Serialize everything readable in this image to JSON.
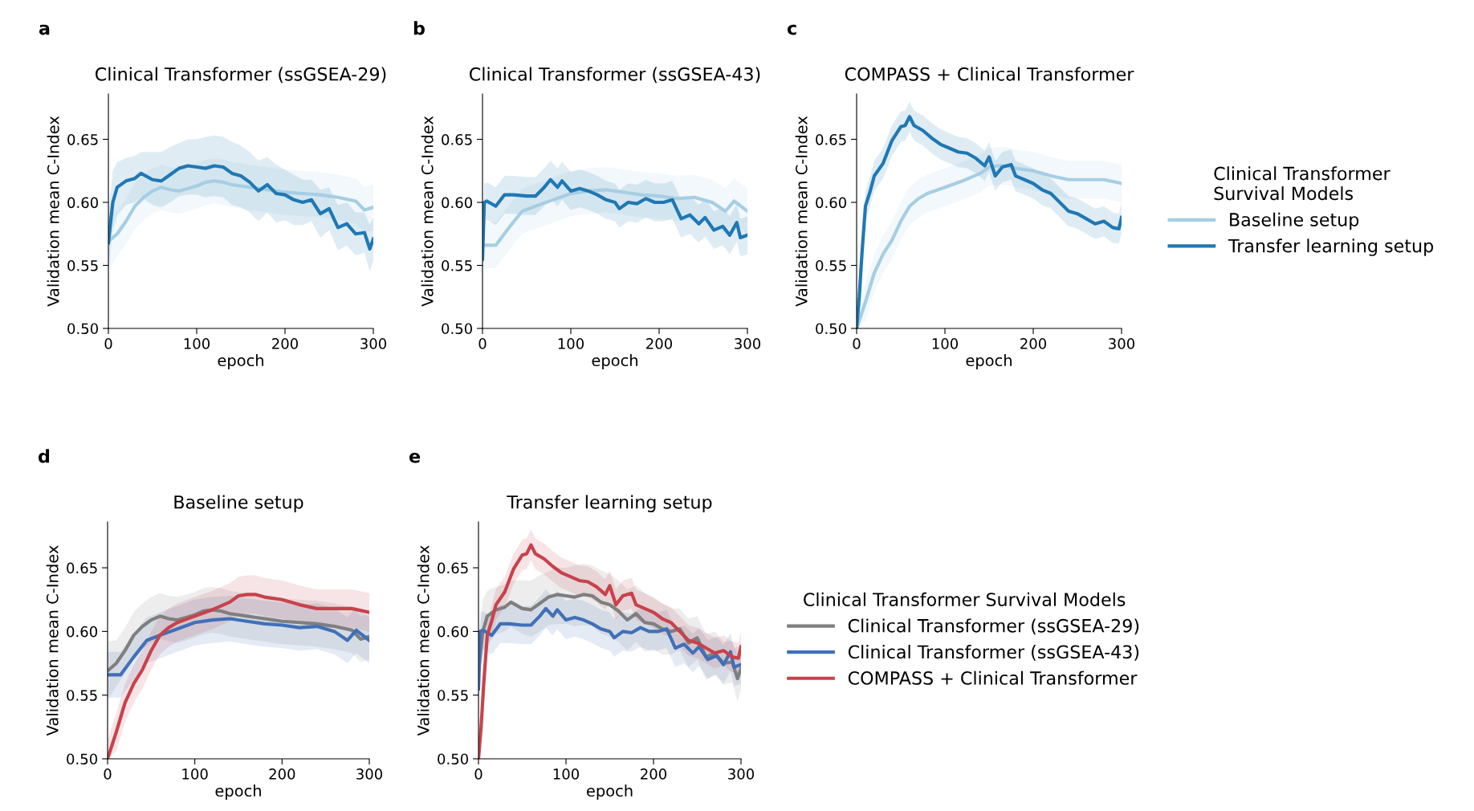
{
  "chart_data": [
    {
      "type": "line",
      "title": "Clinical Transformer (ssGSEA-29)",
      "annotations": [
        "a"
      ],
      "xlabel": "epoch",
      "ylabel": "Validation mean C-Index",
      "xlim": [
        0,
        300
      ],
      "xticks": [
        0,
        100,
        200,
        300
      ],
      "ylim": [
        0.5,
        0.686
      ],
      "yticks": [
        {
          "value": 0.5,
          "label": "0.50"
        },
        {
          "value": 0.55,
          "label": "0.55"
        },
        {
          "value": 0.6,
          "label": "0.60"
        },
        {
          "value": 0.65,
          "label": "0.65"
        }
      ],
      "grid": false,
      "legend": false,
      "series": [
        {
          "color": "#a6cee3",
          "x": [
            0,
            10,
            20,
            30,
            40,
            50,
            60,
            70,
            80,
            90,
            100,
            110,
            120,
            130,
            140,
            150,
            160,
            170,
            180,
            190,
            200,
            220,
            240,
            260,
            280,
            290,
            300
          ],
          "values": [
            0.569,
            0.575,
            0.585,
            0.597,
            0.604,
            0.609,
            0.612,
            0.61,
            0.609,
            0.611,
            0.613,
            0.616,
            0.617,
            0.616,
            0.614,
            0.613,
            0.612,
            0.611,
            0.61,
            0.609,
            0.608,
            0.607,
            0.606,
            0.604,
            0.601,
            0.594,
            0.596
          ],
          "upper": [
            0.592,
            0.593,
            0.603,
            0.615,
            0.622,
            0.627,
            0.63,
            0.628,
            0.627,
            0.629,
            0.631,
            0.634,
            0.635,
            0.634,
            0.632,
            0.631,
            0.63,
            0.629,
            0.628,
            0.627,
            0.626,
            0.625,
            0.624,
            0.622,
            0.619,
            0.612,
            0.614
          ],
          "lower": [
            0.546,
            0.557,
            0.567,
            0.579,
            0.586,
            0.591,
            0.594,
            0.592,
            0.591,
            0.593,
            0.595,
            0.598,
            0.599,
            0.598,
            0.596,
            0.595,
            0.594,
            0.593,
            0.592,
            0.591,
            0.59,
            0.589,
            0.588,
            0.586,
            0.583,
            0.576,
            0.578
          ]
        },
        {
          "color": "#1f78b4",
          "x": [
            0,
            5,
            10,
            20,
            30,
            37,
            50,
            60,
            70,
            80,
            90,
            100,
            110,
            120,
            130,
            140,
            150,
            160,
            170,
            180,
            190,
            200,
            210,
            220,
            230,
            240,
            250,
            260,
            270,
            280,
            290,
            296,
            300
          ],
          "values": [
            0.568,
            0.6,
            0.612,
            0.617,
            0.619,
            0.623,
            0.618,
            0.617,
            0.622,
            0.627,
            0.629,
            0.628,
            0.627,
            0.629,
            0.628,
            0.623,
            0.621,
            0.616,
            0.609,
            0.614,
            0.607,
            0.606,
            0.602,
            0.6,
            0.602,
            0.591,
            0.595,
            0.58,
            0.583,
            0.575,
            0.576,
            0.563,
            0.571
          ],
          "upper": [
            0.59,
            0.625,
            0.632,
            0.635,
            0.637,
            0.64,
            0.64,
            0.64,
            0.644,
            0.647,
            0.65,
            0.65,
            0.652,
            0.653,
            0.652,
            0.648,
            0.645,
            0.64,
            0.633,
            0.636,
            0.63,
            0.626,
            0.622,
            0.618,
            0.618,
            0.61,
            0.612,
            0.598,
            0.6,
            0.592,
            0.592,
            0.582,
            0.588
          ],
          "lower": [
            0.546,
            0.578,
            0.59,
            0.598,
            0.6,
            0.604,
            0.598,
            0.596,
            0.6,
            0.605,
            0.606,
            0.606,
            0.604,
            0.605,
            0.604,
            0.598,
            0.596,
            0.592,
            0.585,
            0.592,
            0.584,
            0.586,
            0.582,
            0.582,
            0.585,
            0.572,
            0.578,
            0.562,
            0.566,
            0.558,
            0.56,
            0.545,
            0.554
          ]
        }
      ]
    },
    {
      "type": "line",
      "title": "Clinical Transformer (ssGSEA-43)",
      "annotations": [
        "b"
      ],
      "xlabel": "epoch",
      "ylabel": "Validation mean C-Index",
      "xlim": [
        0,
        300
      ],
      "xticks": [
        0,
        100,
        200,
        300
      ],
      "ylim": [
        0.5,
        0.686
      ],
      "yticks": [
        {
          "value": 0.5,
          "label": "0.50"
        },
        {
          "value": 0.55,
          "label": "0.55"
        },
        {
          "value": 0.6,
          "label": "0.60"
        },
        {
          "value": 0.65,
          "label": "0.65"
        }
      ],
      "grid": false,
      "legend": false,
      "series": [
        {
          "color": "#a6cee3",
          "x": [
            0,
            15,
            30,
            45,
            60,
            80,
            100,
            120,
            140,
            160,
            180,
            200,
            220,
            240,
            260,
            275,
            285,
            300
          ],
          "values": [
            0.566,
            0.566,
            0.58,
            0.593,
            0.597,
            0.602,
            0.607,
            0.609,
            0.61,
            0.608,
            0.606,
            0.605,
            0.603,
            0.604,
            0.6,
            0.593,
            0.601,
            0.593
          ],
          "upper": [
            0.584,
            0.584,
            0.598,
            0.611,
            0.615,
            0.62,
            0.625,
            0.627,
            0.628,
            0.626,
            0.624,
            0.623,
            0.621,
            0.622,
            0.618,
            0.611,
            0.619,
            0.611
          ],
          "lower": [
            0.548,
            0.548,
            0.562,
            0.575,
            0.579,
            0.584,
            0.589,
            0.591,
            0.592,
            0.59,
            0.588,
            0.587,
            0.585,
            0.586,
            0.582,
            0.575,
            0.583,
            0.575
          ]
        },
        {
          "color": "#1f78b4",
          "x": [
            0,
            2,
            5,
            15,
            25,
            35,
            50,
            60,
            70,
            77,
            85,
            90,
            100,
            110,
            120,
            130,
            140,
            150,
            155,
            165,
            175,
            185,
            195,
            205,
            215,
            225,
            235,
            245,
            252,
            262,
            272,
            280,
            288,
            292,
            300
          ],
          "values": [
            0.555,
            0.6,
            0.601,
            0.597,
            0.606,
            0.606,
            0.605,
            0.605,
            0.612,
            0.618,
            0.612,
            0.617,
            0.609,
            0.611,
            0.609,
            0.606,
            0.602,
            0.6,
            0.595,
            0.6,
            0.599,
            0.603,
            0.6,
            0.6,
            0.602,
            0.587,
            0.59,
            0.583,
            0.588,
            0.578,
            0.581,
            0.574,
            0.584,
            0.572,
            0.574
          ],
          "upper": [
            0.57,
            0.615,
            0.616,
            0.612,
            0.621,
            0.621,
            0.62,
            0.62,
            0.627,
            0.633,
            0.627,
            0.632,
            0.624,
            0.626,
            0.624,
            0.621,
            0.617,
            0.615,
            0.61,
            0.615,
            0.614,
            0.618,
            0.615,
            0.615,
            0.617,
            0.602,
            0.605,
            0.598,
            0.603,
            0.593,
            0.596,
            0.589,
            0.599,
            0.587,
            0.589
          ],
          "lower": [
            0.54,
            0.585,
            0.586,
            0.582,
            0.591,
            0.591,
            0.59,
            0.59,
            0.597,
            0.603,
            0.597,
            0.602,
            0.594,
            0.596,
            0.594,
            0.591,
            0.587,
            0.585,
            0.58,
            0.585,
            0.584,
            0.588,
            0.585,
            0.585,
            0.587,
            0.572,
            0.575,
            0.568,
            0.573,
            0.563,
            0.566,
            0.559,
            0.569,
            0.557,
            0.559
          ]
        }
      ]
    },
    {
      "type": "line",
      "title": "COMPASS + Clinical Transformer",
      "annotations": [
        "c"
      ],
      "xlabel": "epoch",
      "ylabel": "Validation mean C-Index",
      "xlim": [
        0,
        300
      ],
      "xticks": [
        0,
        100,
        200,
        300
      ],
      "ylim": [
        0.5,
        0.686
      ],
      "yticks": [
        {
          "value": 0.5,
          "label": "0.50"
        },
        {
          "value": 0.55,
          "label": "0.55"
        },
        {
          "value": 0.6,
          "label": "0.60"
        },
        {
          "value": 0.65,
          "label": "0.65"
        }
      ],
      "grid": false,
      "legend": "right",
      "legend_title": "Clinical Transformer\nSurvival Models",
      "series": [
        {
          "name": "Baseline setup",
          "color": "#a6cee3",
          "x": [
            0,
            10,
            20,
            30,
            40,
            50,
            60,
            70,
            80,
            100,
            120,
            140,
            150,
            160,
            170,
            180,
            200,
            220,
            240,
            260,
            280,
            300
          ],
          "values": [
            0.5,
            0.521,
            0.544,
            0.559,
            0.57,
            0.585,
            0.597,
            0.603,
            0.607,
            0.612,
            0.617,
            0.623,
            0.628,
            0.629,
            0.629,
            0.627,
            0.625,
            0.621,
            0.618,
            0.618,
            0.618,
            0.615
          ],
          "upper": [
            0.515,
            0.536,
            0.559,
            0.574,
            0.585,
            0.6,
            0.612,
            0.618,
            0.622,
            0.627,
            0.632,
            0.638,
            0.643,
            0.644,
            0.644,
            0.642,
            0.64,
            0.636,
            0.633,
            0.633,
            0.633,
            0.63
          ],
          "lower": [
            0.5,
            0.506,
            0.529,
            0.544,
            0.555,
            0.57,
            0.582,
            0.588,
            0.592,
            0.597,
            0.602,
            0.608,
            0.613,
            0.614,
            0.614,
            0.612,
            0.61,
            0.606,
            0.603,
            0.603,
            0.603,
            0.6
          ]
        },
        {
          "name": "Transfer learning setup",
          "color": "#1f78b4",
          "x": [
            0,
            3,
            6,
            10,
            15,
            20,
            30,
            40,
            50,
            55,
            60,
            65,
            75,
            85,
            95,
            105,
            115,
            125,
            135,
            145,
            150,
            157,
            165,
            175,
            180,
            190,
            200,
            210,
            220,
            230,
            240,
            250,
            260,
            270,
            280,
            290,
            297,
            300
          ],
          "values": [
            0.5,
            0.525,
            0.559,
            0.597,
            0.608,
            0.621,
            0.631,
            0.649,
            0.66,
            0.661,
            0.668,
            0.661,
            0.657,
            0.651,
            0.646,
            0.643,
            0.64,
            0.639,
            0.635,
            0.629,
            0.636,
            0.621,
            0.628,
            0.63,
            0.621,
            0.618,
            0.615,
            0.61,
            0.607,
            0.6,
            0.593,
            0.591,
            0.587,
            0.583,
            0.585,
            0.58,
            0.579,
            0.588
          ],
          "upper": [
            0.512,
            0.537,
            0.571,
            0.609,
            0.62,
            0.633,
            0.643,
            0.661,
            0.672,
            0.673,
            0.68,
            0.673,
            0.669,
            0.663,
            0.658,
            0.655,
            0.652,
            0.651,
            0.647,
            0.641,
            0.648,
            0.633,
            0.64,
            0.642,
            0.633,
            0.63,
            0.627,
            0.622,
            0.619,
            0.612,
            0.605,
            0.603,
            0.599,
            0.595,
            0.597,
            0.592,
            0.591,
            0.6
          ],
          "lower": [
            0.5,
            0.513,
            0.547,
            0.585,
            0.596,
            0.609,
            0.619,
            0.637,
            0.648,
            0.649,
            0.656,
            0.649,
            0.645,
            0.639,
            0.634,
            0.631,
            0.628,
            0.627,
            0.623,
            0.617,
            0.624,
            0.609,
            0.616,
            0.618,
            0.609,
            0.606,
            0.603,
            0.598,
            0.595,
            0.588,
            0.581,
            0.579,
            0.575,
            0.571,
            0.573,
            0.568,
            0.567,
            0.576
          ]
        }
      ]
    },
    {
      "type": "line",
      "title": "Baseline setup",
      "annotations": [
        "d"
      ],
      "xlabel": "epoch",
      "ylabel": "Validation mean C-Index",
      "xlim": [
        0,
        300
      ],
      "xticks": [
        0,
        100,
        200,
        300
      ],
      "ylim": [
        0.5,
        0.686
      ],
      "yticks": [
        {
          "value": 0.5,
          "label": "0.50"
        },
        {
          "value": 0.55,
          "label": "0.55"
        },
        {
          "value": 0.6,
          "label": "0.60"
        },
        {
          "value": 0.65,
          "label": "0.65"
        }
      ],
      "grid": false,
      "legend": false,
      "series": [
        {
          "color": "#7f7f7f",
          "x": [
            0,
            10,
            20,
            30,
            40,
            50,
            60,
            70,
            80,
            90,
            100,
            110,
            120,
            130,
            140,
            150,
            160,
            170,
            180,
            190,
            200,
            220,
            240,
            260,
            280,
            290,
            300
          ],
          "values": [
            0.569,
            0.575,
            0.585,
            0.597,
            0.604,
            0.609,
            0.612,
            0.61,
            0.609,
            0.611,
            0.613,
            0.616,
            0.617,
            0.616,
            0.614,
            0.613,
            0.612,
            0.611,
            0.61,
            0.609,
            0.608,
            0.607,
            0.606,
            0.604,
            0.601,
            0.594,
            0.596
          ],
          "upper": [
            0.592,
            0.593,
            0.603,
            0.615,
            0.622,
            0.627,
            0.63,
            0.628,
            0.627,
            0.629,
            0.631,
            0.634,
            0.635,
            0.634,
            0.632,
            0.631,
            0.63,
            0.629,
            0.628,
            0.627,
            0.626,
            0.625,
            0.624,
            0.622,
            0.619,
            0.612,
            0.614
          ],
          "lower": [
            0.546,
            0.557,
            0.567,
            0.579,
            0.586,
            0.591,
            0.594,
            0.592,
            0.591,
            0.593,
            0.595,
            0.598,
            0.599,
            0.598,
            0.596,
            0.595,
            0.594,
            0.593,
            0.592,
            0.591,
            0.59,
            0.589,
            0.588,
            0.586,
            0.583,
            0.576,
            0.578
          ]
        },
        {
          "color": "#4070b8",
          "x": [
            0,
            15,
            30,
            45,
            60,
            80,
            100,
            120,
            140,
            160,
            180,
            200,
            220,
            240,
            260,
            275,
            285,
            300
          ],
          "values": [
            0.566,
            0.566,
            0.58,
            0.593,
            0.597,
            0.602,
            0.607,
            0.609,
            0.61,
            0.608,
            0.606,
            0.605,
            0.603,
            0.604,
            0.6,
            0.593,
            0.601,
            0.593
          ],
          "upper": [
            0.584,
            0.584,
            0.598,
            0.611,
            0.615,
            0.62,
            0.625,
            0.627,
            0.628,
            0.626,
            0.624,
            0.623,
            0.621,
            0.622,
            0.618,
            0.611,
            0.619,
            0.611
          ],
          "lower": [
            0.548,
            0.548,
            0.562,
            0.575,
            0.579,
            0.584,
            0.589,
            0.591,
            0.592,
            0.59,
            0.588,
            0.587,
            0.585,
            0.586,
            0.582,
            0.575,
            0.583,
            0.575
          ]
        },
        {
          "color": "#c8424b",
          "x": [
            0,
            10,
            20,
            30,
            40,
            50,
            60,
            70,
            80,
            100,
            120,
            140,
            150,
            160,
            170,
            180,
            200,
            220,
            240,
            260,
            280,
            300
          ],
          "values": [
            0.5,
            0.521,
            0.544,
            0.559,
            0.57,
            0.585,
            0.597,
            0.603,
            0.607,
            0.612,
            0.617,
            0.623,
            0.628,
            0.629,
            0.629,
            0.627,
            0.625,
            0.621,
            0.618,
            0.618,
            0.618,
            0.615
          ],
          "upper": [
            0.515,
            0.536,
            0.559,
            0.574,
            0.585,
            0.6,
            0.612,
            0.618,
            0.622,
            0.627,
            0.632,
            0.638,
            0.643,
            0.644,
            0.644,
            0.642,
            0.64,
            0.636,
            0.633,
            0.633,
            0.633,
            0.63
          ],
          "lower": [
            0.5,
            0.506,
            0.529,
            0.544,
            0.555,
            0.57,
            0.582,
            0.588,
            0.592,
            0.597,
            0.602,
            0.608,
            0.613,
            0.614,
            0.614,
            0.612,
            0.61,
            0.606,
            0.603,
            0.603,
            0.603,
            0.6
          ]
        }
      ]
    },
    {
      "type": "line",
      "title": "Transfer learning setup",
      "annotations": [
        "e"
      ],
      "xlabel": "epoch",
      "ylabel": "Validation mean C-Index",
      "xlim": [
        0,
        300
      ],
      "xticks": [
        0,
        100,
        200,
        300
      ],
      "ylim": [
        0.5,
        0.686
      ],
      "yticks": [
        {
          "value": 0.5,
          "label": "0.50"
        },
        {
          "value": 0.55,
          "label": "0.55"
        },
        {
          "value": 0.6,
          "label": "0.60"
        },
        {
          "value": 0.65,
          "label": "0.65"
        }
      ],
      "grid": false,
      "legend": "right",
      "legend_title": "Clinical Transformer Survival Models",
      "series": [
        {
          "name": "Clinical Transformer (ssGSEA-29)",
          "color": "#7f7f7f",
          "x": [
            0,
            5,
            10,
            20,
            30,
            37,
            50,
            60,
            70,
            80,
            90,
            100,
            110,
            120,
            130,
            140,
            150,
            160,
            170,
            180,
            190,
            200,
            210,
            220,
            230,
            240,
            250,
            260,
            270,
            280,
            290,
            296,
            300
          ],
          "values": [
            0.568,
            0.6,
            0.612,
            0.617,
            0.619,
            0.623,
            0.618,
            0.617,
            0.622,
            0.627,
            0.629,
            0.628,
            0.627,
            0.629,
            0.628,
            0.623,
            0.621,
            0.616,
            0.609,
            0.614,
            0.607,
            0.606,
            0.602,
            0.6,
            0.602,
            0.591,
            0.595,
            0.58,
            0.583,
            0.575,
            0.576,
            0.563,
            0.571
          ],
          "upper": [
            0.59,
            0.625,
            0.632,
            0.635,
            0.637,
            0.64,
            0.64,
            0.64,
            0.644,
            0.647,
            0.65,
            0.65,
            0.652,
            0.653,
            0.652,
            0.648,
            0.645,
            0.64,
            0.633,
            0.636,
            0.63,
            0.626,
            0.622,
            0.618,
            0.618,
            0.61,
            0.612,
            0.598,
            0.6,
            0.592,
            0.592,
            0.582,
            0.588
          ],
          "lower": [
            0.546,
            0.578,
            0.59,
            0.598,
            0.6,
            0.604,
            0.598,
            0.596,
            0.6,
            0.605,
            0.606,
            0.606,
            0.604,
            0.605,
            0.604,
            0.598,
            0.596,
            0.592,
            0.585,
            0.592,
            0.584,
            0.586,
            0.582,
            0.582,
            0.585,
            0.572,
            0.578,
            0.562,
            0.566,
            0.558,
            0.56,
            0.545,
            0.554
          ]
        },
        {
          "name": "Clinical Transformer (ssGSEA-43)",
          "color": "#4070b8",
          "x": [
            0,
            2,
            5,
            15,
            25,
            35,
            50,
            60,
            70,
            77,
            85,
            90,
            100,
            110,
            120,
            130,
            140,
            150,
            155,
            165,
            175,
            185,
            195,
            205,
            215,
            225,
            235,
            245,
            252,
            262,
            272,
            280,
            288,
            292,
            300
          ],
          "values": [
            0.555,
            0.6,
            0.601,
            0.597,
            0.606,
            0.606,
            0.605,
            0.605,
            0.612,
            0.618,
            0.612,
            0.617,
            0.609,
            0.611,
            0.609,
            0.606,
            0.602,
            0.6,
            0.595,
            0.6,
            0.599,
            0.603,
            0.6,
            0.6,
            0.602,
            0.587,
            0.59,
            0.583,
            0.588,
            0.578,
            0.581,
            0.574,
            0.584,
            0.572,
            0.574
          ],
          "upper": [
            0.57,
            0.615,
            0.616,
            0.612,
            0.621,
            0.621,
            0.62,
            0.62,
            0.627,
            0.633,
            0.627,
            0.632,
            0.624,
            0.626,
            0.624,
            0.621,
            0.617,
            0.615,
            0.61,
            0.615,
            0.614,
            0.618,
            0.615,
            0.615,
            0.617,
            0.602,
            0.605,
            0.598,
            0.603,
            0.593,
            0.596,
            0.589,
            0.599,
            0.587,
            0.589
          ],
          "lower": [
            0.54,
            0.585,
            0.586,
            0.582,
            0.591,
            0.591,
            0.59,
            0.59,
            0.597,
            0.603,
            0.597,
            0.602,
            0.594,
            0.596,
            0.594,
            0.591,
            0.587,
            0.585,
            0.58,
            0.585,
            0.584,
            0.588,
            0.585,
            0.585,
            0.587,
            0.572,
            0.575,
            0.568,
            0.573,
            0.563,
            0.566,
            0.559,
            0.569,
            0.557,
            0.559
          ]
        },
        {
          "name": "COMPASS + Clinical Transformer",
          "color": "#c8424b",
          "x": [
            0,
            3,
            6,
            10,
            15,
            20,
            30,
            40,
            50,
            55,
            60,
            65,
            75,
            85,
            95,
            105,
            115,
            125,
            135,
            145,
            150,
            157,
            165,
            175,
            180,
            190,
            200,
            210,
            220,
            230,
            240,
            250,
            260,
            270,
            280,
            290,
            297,
            300
          ],
          "values": [
            0.5,
            0.525,
            0.559,
            0.597,
            0.608,
            0.621,
            0.631,
            0.649,
            0.66,
            0.661,
            0.668,
            0.661,
            0.657,
            0.651,
            0.646,
            0.643,
            0.64,
            0.639,
            0.635,
            0.629,
            0.636,
            0.621,
            0.628,
            0.63,
            0.621,
            0.618,
            0.615,
            0.61,
            0.607,
            0.6,
            0.593,
            0.591,
            0.587,
            0.583,
            0.585,
            0.58,
            0.579,
            0.588
          ],
          "upper": [
            0.512,
            0.537,
            0.571,
            0.609,
            0.62,
            0.633,
            0.643,
            0.661,
            0.672,
            0.673,
            0.68,
            0.673,
            0.669,
            0.663,
            0.658,
            0.655,
            0.652,
            0.651,
            0.647,
            0.641,
            0.648,
            0.633,
            0.64,
            0.642,
            0.633,
            0.63,
            0.627,
            0.622,
            0.619,
            0.612,
            0.605,
            0.603,
            0.599,
            0.595,
            0.597,
            0.592,
            0.591,
            0.6
          ],
          "lower": [
            0.5,
            0.513,
            0.547,
            0.585,
            0.596,
            0.609,
            0.619,
            0.637,
            0.648,
            0.649,
            0.656,
            0.649,
            0.645,
            0.639,
            0.634,
            0.631,
            0.628,
            0.627,
            0.623,
            0.617,
            0.624,
            0.609,
            0.616,
            0.618,
            0.609,
            0.606,
            0.603,
            0.598,
            0.595,
            0.588,
            0.581,
            0.579,
            0.575,
            0.571,
            0.573,
            0.568,
            0.567,
            0.576
          ]
        }
      ]
    }
  ]
}
